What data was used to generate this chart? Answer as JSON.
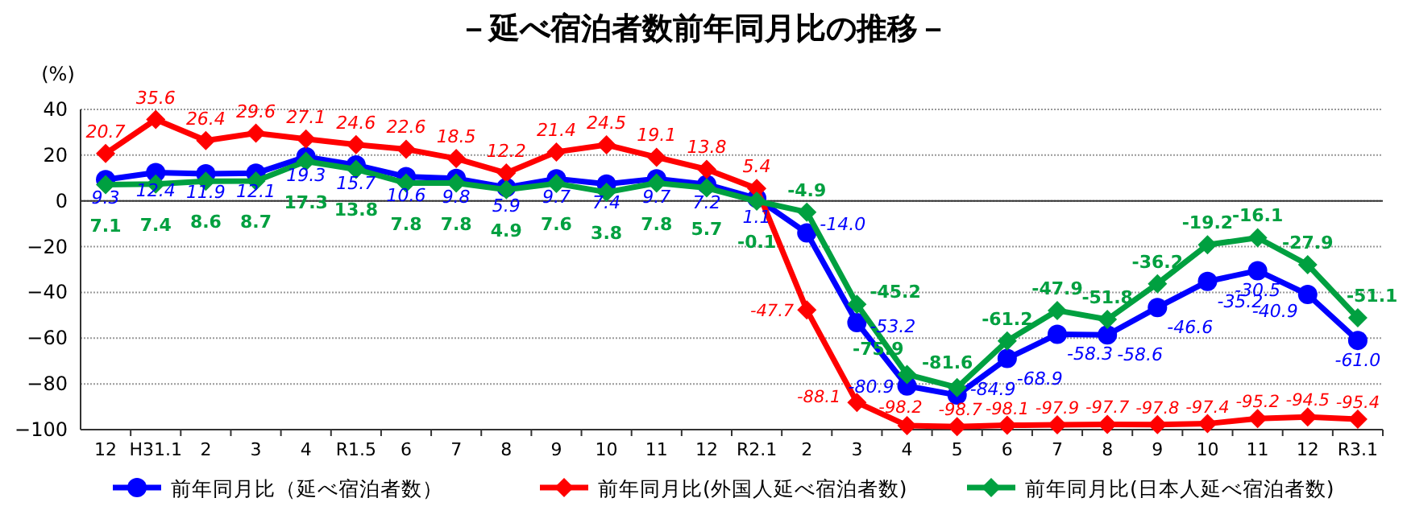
{
  "chart_data": {
    "type": "line",
    "title": "－延べ宿泊者数前年同月比の推移－",
    "ylabel": "(%)",
    "categories": [
      "12",
      "H31.1",
      "2",
      "3",
      "4",
      "R1.5",
      "6",
      "7",
      "8",
      "9",
      "10",
      "11",
      "12",
      "R2.1",
      "2",
      "3",
      "4",
      "5",
      "6",
      "7",
      "8",
      "9",
      "10",
      "11",
      "12",
      "R3.1"
    ],
    "ylim": [
      -100,
      40
    ],
    "yticks": [
      -100,
      -80,
      -60,
      -40,
      -20,
      0,
      20,
      40
    ],
    "grid": "y",
    "legend": "bottom",
    "series": [
      {
        "name": "前年同月比（延べ宿泊者数）",
        "color": "#0000ff",
        "marker": "circle",
        "values": [
          9.3,
          12.4,
          11.9,
          12.1,
          19.3,
          15.7,
          10.6,
          9.8,
          5.9,
          9.7,
          7.4,
          9.7,
          7.2,
          1.1,
          -14.0,
          -53.2,
          -80.9,
          -84.9,
          -68.9,
          -58.3,
          -58.6,
          -46.6,
          -35.2,
          -30.5,
          -40.9,
          -61.0
        ],
        "value_labels": [
          "9.3",
          "12.4",
          "11.9",
          "12.1",
          "19.3",
          "15.7",
          "10.6",
          "9.8",
          "5.9",
          "9.7",
          "7.4",
          "9.7",
          "7.2",
          "1.1",
          "-14.0",
          "-53.2",
          "-80.9",
          "-84.9",
          "-68.9",
          "-58.3",
          "-58.6",
          "-46.6",
          "-35.2",
          "-30.5",
          "-40.9",
          "-61.0"
        ]
      },
      {
        "name": "前年同月比(外国人延べ宿泊者数)",
        "color": "#ff0000",
        "marker": "diamond",
        "values": [
          20.7,
          35.6,
          26.4,
          29.6,
          27.1,
          24.6,
          22.6,
          18.5,
          12.2,
          21.4,
          24.5,
          19.1,
          13.8,
          5.4,
          -47.7,
          -88.1,
          -98.2,
          -98.7,
          -98.1,
          -97.9,
          -97.7,
          -97.8,
          -97.4,
          -95.2,
          -94.5,
          -95.4
        ],
        "value_labels": [
          "20.7",
          "35.6",
          "26.4",
          "29.6",
          "27.1",
          "24.6",
          "22.6",
          "18.5",
          "12.2",
          "21.4",
          "24.5",
          "19.1",
          "13.8",
          "5.4",
          "-47.7",
          "-88.1",
          "-98.2",
          "-98.7",
          "-98.1",
          "-97.9",
          "-97.7",
          "-97.8",
          "-97.4",
          "-95.2",
          "-94.5",
          "-95.4"
        ]
      },
      {
        "name": "前年同月比(日本人延べ宿泊者数)",
        "color": "#00a040",
        "marker": "diamond",
        "values": [
          7.1,
          7.4,
          8.6,
          8.7,
          17.3,
          13.8,
          7.8,
          7.8,
          4.9,
          7.6,
          3.8,
          7.8,
          5.7,
          -0.1,
          -4.9,
          -45.2,
          -75.9,
          -81.6,
          -61.2,
          -47.9,
          -51.8,
          -36.2,
          -19.2,
          -16.1,
          -27.9,
          -51.1
        ],
        "value_labels": [
          "7.1",
          "7.4",
          "8.6",
          "8.7",
          "17.3",
          "13.8",
          "7.8",
          "7.8",
          "4.9",
          "7.6",
          "3.8",
          "7.8",
          "5.7",
          "-0.1",
          "-4.9",
          "-45.2",
          "-75.9",
          "-81.6",
          "-61.2",
          "-47.9",
          "-51.8",
          "-36.2",
          "-19.2",
          "-16.1",
          "-27.9",
          "-51.1"
        ]
      }
    ]
  }
}
